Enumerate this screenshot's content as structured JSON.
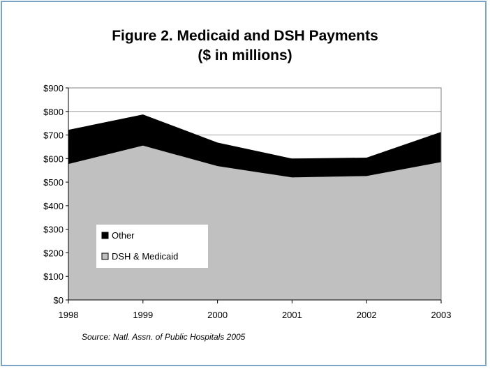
{
  "title_line1": "Figure 2.  Medicaid and DSH Payments",
  "title_line2": "($ in millions)",
  "source": "Source: Natl. Assn. of Public Hospitals  2005",
  "colors": {
    "other": "#000000",
    "dsh_medicaid": "#c0c0c0",
    "border": "#7aa3c8"
  },
  "chart_data": {
    "type": "area",
    "stacked": true,
    "x": [
      "1998",
      "1999",
      "2000",
      "2001",
      "2002",
      "2003"
    ],
    "series": [
      {
        "name": "DSH & Medicaid",
        "values": [
          577,
          655,
          568,
          520,
          526,
          585
        ]
      },
      {
        "name": "Other",
        "values": [
          145,
          132,
          100,
          80,
          78,
          128
        ]
      }
    ],
    "ylim": [
      0,
      900
    ],
    "yticks": [
      "$0",
      "$100",
      "$200",
      "$300",
      "$400",
      "$500",
      "$600",
      "$700",
      "$800",
      "$900"
    ],
    "legend_position": "lower-left",
    "grid": "horizontal at top"
  }
}
